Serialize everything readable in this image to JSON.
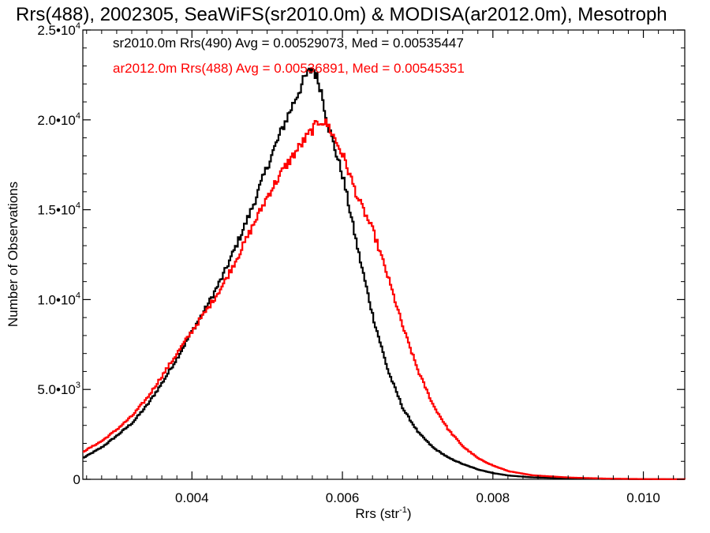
{
  "chart_data": {
    "type": "line",
    "title": "Rrs(488), 2002305, SeaWiFS(sr2010.0m) & MODISA(ar2012.0m), Mesotroph",
    "xlabel": "Rrs (str",
    "xlabel_sup": "-1",
    "xlabel_end": ")",
    "ylabel": "Number of Observations",
    "xlim": [
      0.00255,
      0.01055
    ],
    "ylim": [
      0,
      25000
    ],
    "x_ticks": [
      {
        "value": 0.004,
        "label": "0.004"
      },
      {
        "value": 0.006,
        "label": "0.006"
      },
      {
        "value": 0.008,
        "label": "0.008"
      },
      {
        "value": 0.01,
        "label": "0.010"
      }
    ],
    "y_ticks": [
      {
        "value": 0,
        "mant": "0",
        "exp": ""
      },
      {
        "value": 5000,
        "mant": "5.0•10",
        "exp": "3"
      },
      {
        "value": 10000,
        "mant": "1.0•10",
        "exp": "4"
      },
      {
        "value": 15000,
        "mant": "1.5•10",
        "exp": "4"
      },
      {
        "value": 20000,
        "mant": "2.0•10",
        "exp": "4"
      },
      {
        "value": 25000,
        "mant": "2.5•10",
        "exp": "4"
      }
    ],
    "annotations": [
      {
        "text": "sr2010.0m Rrs(490) Avg = 0.00529073, Med = 0.00535447",
        "color": "#000000"
      },
      {
        "text": "ar2012.0m Rrs(488) Avg = 0.00536891, Med = 0.00545351",
        "color": "#ff0000"
      }
    ],
    "series": [
      {
        "color": "#000000",
        "x": [
          0.00255,
          0.0028,
          0.003,
          0.0032,
          0.0034,
          0.0036,
          0.0038,
          0.004,
          0.0042,
          0.0044,
          0.0046,
          0.0048,
          0.005,
          0.0052,
          0.0054,
          0.0055,
          0.0056,
          0.0057,
          0.0058,
          0.006,
          0.0062,
          0.0064,
          0.0066,
          0.0068,
          0.007,
          0.0072,
          0.0074,
          0.0076,
          0.0078,
          0.008,
          0.0082,
          0.0085,
          0.009,
          0.0095,
          0.01,
          0.01055
        ],
        "y": [
          1200,
          1800,
          2450,
          3150,
          4150,
          5400,
          6800,
          8300,
          9700,
          11300,
          13200,
          15200,
          17500,
          19600,
          21500,
          22400,
          22900,
          21800,
          19700,
          16800,
          12700,
          9000,
          6000,
          3900,
          2600,
          1750,
          1200,
          830,
          540,
          340,
          210,
          110,
          50,
          20,
          8,
          2
        ]
      },
      {
        "color": "#ff0000",
        "x": [
          0.00255,
          0.0028,
          0.003,
          0.0032,
          0.0034,
          0.0036,
          0.0038,
          0.004,
          0.0042,
          0.0044,
          0.0046,
          0.0048,
          0.005,
          0.0052,
          0.0054,
          0.0056,
          0.0057,
          0.0058,
          0.006,
          0.0062,
          0.0064,
          0.0066,
          0.0068,
          0.007,
          0.0072,
          0.0074,
          0.0076,
          0.0078,
          0.008,
          0.0082,
          0.0085,
          0.009,
          0.0095,
          0.01,
          0.01055
        ],
        "y": [
          1550,
          2150,
          2800,
          3550,
          4550,
          5800,
          7050,
          8300,
          9500,
          10800,
          12400,
          14100,
          15800,
          17200,
          18400,
          19500,
          20000,
          19700,
          18000,
          15600,
          13800,
          11200,
          8400,
          6000,
          4100,
          2750,
          1800,
          1150,
          750,
          450,
          230,
          100,
          40,
          15,
          4
        ]
      }
    ]
  }
}
